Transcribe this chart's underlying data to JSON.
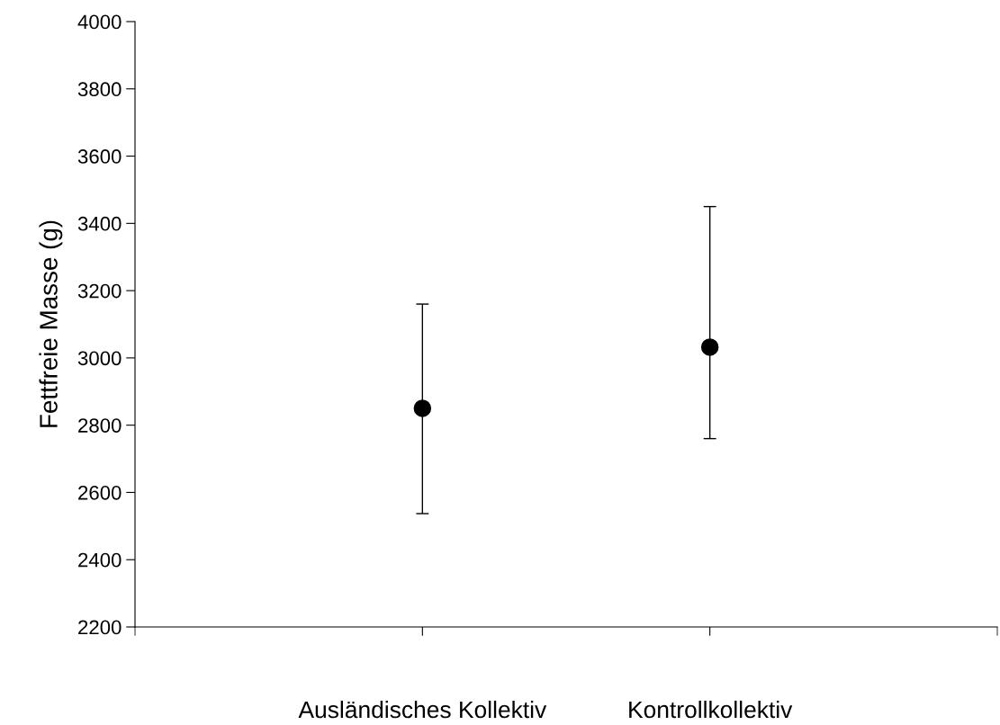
{
  "chart_data": {
    "type": "scatter",
    "ylabel": "Fettfreie Masse (g)",
    "categories": [
      "Ausländisches Kollektiv",
      "Kontrollkollektiv"
    ],
    "values": [
      2850,
      3032
    ],
    "errors": [
      [
        2537,
        3160
      ],
      [
        2760,
        3450
      ]
    ],
    "color": "#000000",
    "marker": "circle",
    "ylim": [
      2200,
      4000
    ],
    "yticks": [
      2200,
      2400,
      2600,
      2800,
      3000,
      3200,
      3400,
      3600,
      3800,
      4000
    ],
    "grid": false
  }
}
